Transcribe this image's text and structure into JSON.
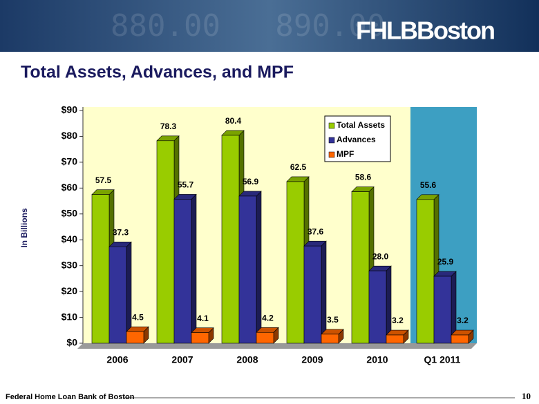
{
  "header": {
    "logo": "FHLBBoston"
  },
  "chart_data": {
    "type": "bar3d",
    "title": "Total Assets, Advances, and MPF",
    "y_label": "In Billions",
    "categories": [
      "2006",
      "2007",
      "2008",
      "2009",
      "2010",
      "Q1 2011"
    ],
    "series": [
      {
        "name": "Total Assets",
        "color": "#99cc00",
        "values": [
          57.5,
          78.3,
          80.4,
          62.5,
          58.6,
          55.6
        ],
        "value_labels": [
          "57.5",
          "78.3",
          "80.4",
          "62.5",
          "58.6",
          "55.6"
        ]
      },
      {
        "name": "Advances",
        "color": "#333399",
        "values": [
          37.3,
          55.7,
          56.9,
          37.6,
          28.0,
          25.9
        ],
        "value_labels": [
          "37.3",
          "55.7",
          "56.9",
          "37.6",
          "28.0",
          "25.9"
        ]
      },
      {
        "name": "MPF",
        "color": "#ff6600",
        "values": [
          4.5,
          4.1,
          4.2,
          3.5,
          3.2,
          3.2
        ],
        "value_labels": [
          "4.5",
          "4.1",
          "4.2",
          "3.5",
          "3.2",
          "3.2"
        ]
      }
    ],
    "ylim": [
      0,
      90
    ],
    "yticks": [
      {
        "value": 0,
        "label": "$0"
      },
      {
        "value": 10,
        "label": "$10"
      },
      {
        "value": 20,
        "label": "$20"
      },
      {
        "value": 30,
        "label": "$30"
      },
      {
        "value": 40,
        "label": "$40"
      },
      {
        "value": 50,
        "label": "$50"
      },
      {
        "value": 60,
        "label": "$60"
      },
      {
        "value": 70,
        "label": "$70"
      },
      {
        "value": 80,
        "label": "$80"
      },
      {
        "value": 90,
        "label": "$90"
      }
    ],
    "legend": "top-right"
  },
  "footer": {
    "org": "Federal Home Loan Bank of Boston",
    "page": "10"
  }
}
